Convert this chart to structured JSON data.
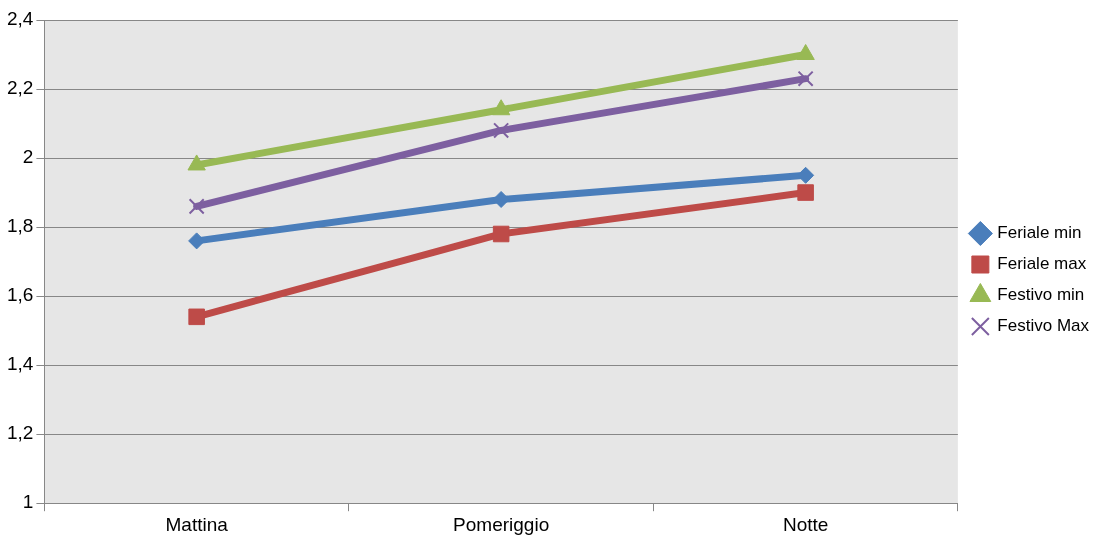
{
  "chart_data": {
    "type": "line",
    "categories": [
      "Mattina",
      "Pomeriggio",
      "Notte"
    ],
    "series": [
      {
        "name": "Feriale min",
        "color": "#4a7ebb",
        "marker": "diamond",
        "values": [
          1.76,
          1.88,
          1.95
        ]
      },
      {
        "name": "Feriale max",
        "color": "#be4b48",
        "marker": "square",
        "values": [
          1.54,
          1.78,
          1.9
        ]
      },
      {
        "name": "Festivo min",
        "color": "#98b954",
        "marker": "triangle",
        "values": [
          1.98,
          2.14,
          2.3
        ]
      },
      {
        "name": "Festivo Max",
        "color": "#7d5fa0",
        "marker": "cross",
        "values": [
          1.86,
          2.08,
          2.23
        ]
      }
    ],
    "ylim": [
      1,
      2.4
    ],
    "yticks": [
      1,
      {
        "value": 1.2,
        "label": "1,2"
      },
      {
        "value": 1.4,
        "label": "1,4"
      },
      {
        "value": 1.6,
        "label": "1,6"
      },
      {
        "value": 1.8,
        "label": "1,8"
      },
      2,
      {
        "value": 2.2,
        "label": "2,2"
      },
      {
        "value": 2.4,
        "label": "2,4"
      }
    ],
    "grid": "y",
    "legend": "right",
    "line_style": "solid"
  }
}
